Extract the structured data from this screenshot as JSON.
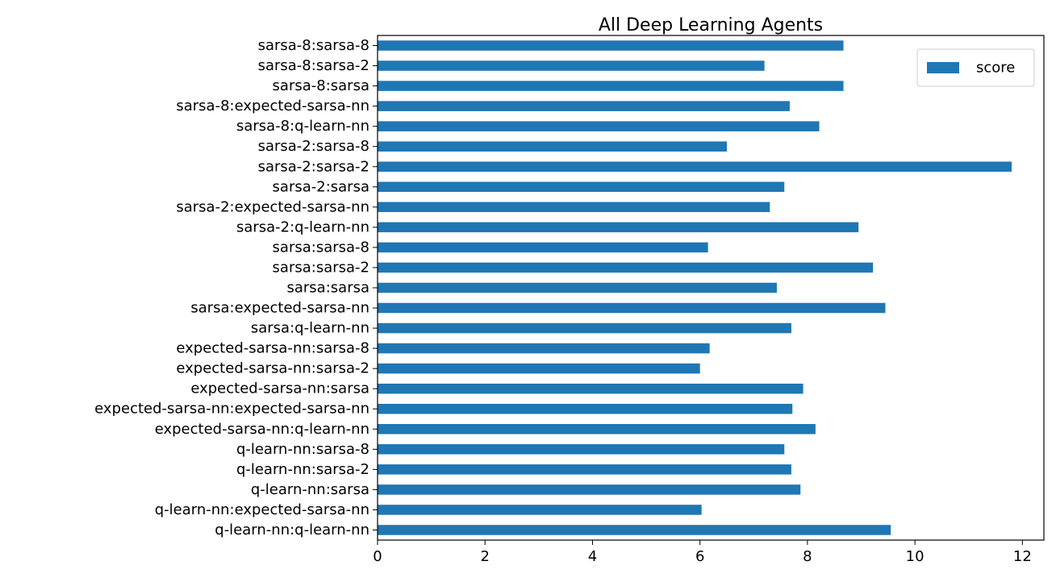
{
  "chart_data": {
    "type": "bar",
    "orientation": "horizontal",
    "title": "All Deep Learning Agents",
    "xlabel": "",
    "ylabel": "",
    "xlim": [
      0,
      12.4
    ],
    "xticks": [
      0,
      2,
      4,
      6,
      8,
      10,
      12
    ],
    "xtick_labels": [
      "0",
      "2",
      "4",
      "6",
      "8",
      "10",
      "12"
    ],
    "grid": false,
    "legend": {
      "position": "top-right",
      "entries": [
        "score"
      ]
    },
    "series": [
      {
        "name": "score",
        "color": "#1f77b4",
        "values": [
          8.67,
          7.2,
          8.67,
          7.67,
          8.22,
          6.5,
          11.8,
          7.57,
          7.3,
          8.95,
          6.15,
          9.22,
          7.43,
          9.45,
          7.7,
          6.18,
          6.0,
          7.92,
          7.72,
          8.15,
          7.57,
          7.7,
          7.87,
          6.03,
          9.55
        ]
      }
    ],
    "categories": [
      "sarsa-8:sarsa-8",
      "sarsa-8:sarsa-2",
      "sarsa-8:sarsa",
      "sarsa-8:expected-sarsa-nn",
      "sarsa-8:q-learn-nn",
      "sarsa-2:sarsa-8",
      "sarsa-2:sarsa-2",
      "sarsa-2:sarsa",
      "sarsa-2:expected-sarsa-nn",
      "sarsa-2:q-learn-nn",
      "sarsa:sarsa-8",
      "sarsa:sarsa-2",
      "sarsa:sarsa",
      "sarsa:expected-sarsa-nn",
      "sarsa:q-learn-nn",
      "expected-sarsa-nn:sarsa-8",
      "expected-sarsa-nn:sarsa-2",
      "expected-sarsa-nn:sarsa",
      "expected-sarsa-nn:expected-sarsa-nn",
      "expected-sarsa-nn:q-learn-nn",
      "q-learn-nn:sarsa-8",
      "q-learn-nn:sarsa-2",
      "q-learn-nn:sarsa",
      "q-learn-nn:expected-sarsa-nn",
      "q-learn-nn:q-learn-nn"
    ]
  }
}
